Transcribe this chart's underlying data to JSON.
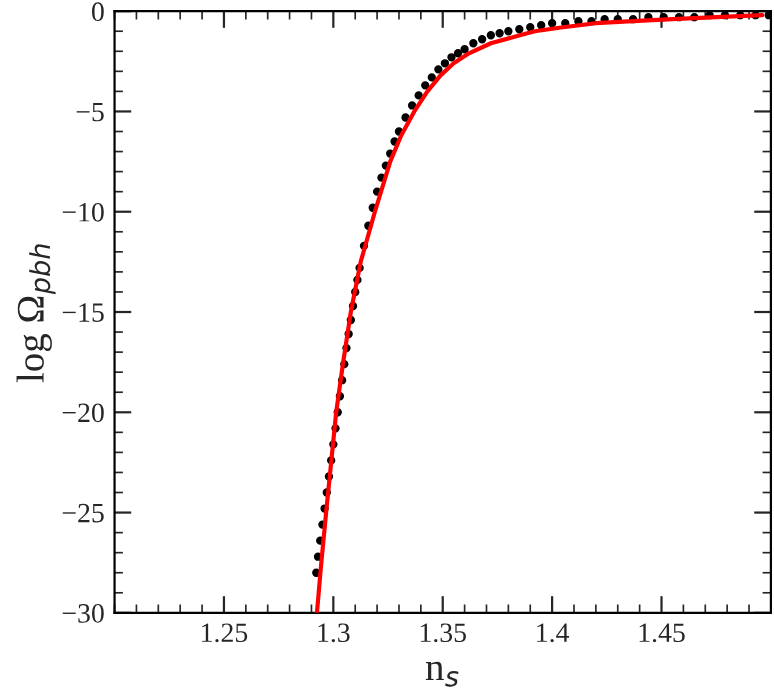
{
  "chart_data": {
    "type": "scatter",
    "xlabel": "n$_{s}$",
    "ylabel": "log Ω$_{pbh}$",
    "xlim": [
      1.2,
      1.5
    ],
    "xticks": [
      1.25,
      1.3,
      1.35,
      1.4,
      1.45
    ],
    "ylim": [
      -30,
      0
    ],
    "yticks": [
      -30,
      -25,
      -20,
      -15,
      -10,
      -5,
      0
    ],
    "grid": false,
    "legend": false,
    "series": [
      {
        "marker": "circle",
        "color": "#000000",
        "x": [
          1.2922,
          1.293,
          1.294,
          1.295,
          1.296,
          1.297,
          1.298,
          1.299,
          1.3,
          1.301,
          1.302,
          1.303,
          1.304,
          1.305,
          1.306,
          1.307,
          1.308,
          1.309,
          1.31,
          1.311,
          1.312,
          1.314,
          1.316,
          1.318,
          1.32,
          1.322,
          1.324,
          1.326,
          1.328,
          1.33,
          1.333,
          1.336,
          1.339,
          1.342,
          1.345,
          1.348,
          1.351,
          1.354,
          1.357,
          1.36,
          1.364,
          1.368,
          1.372,
          1.376,
          1.38,
          1.385,
          1.39,
          1.395,
          1.4,
          1.406,
          1.412,
          1.418,
          1.424,
          1.43,
          1.437,
          1.444,
          1.451,
          1.458,
          1.465,
          1.472,
          1.479,
          1.486,
          1.493,
          1.499
        ],
        "values": [
          -28,
          -27.2,
          -26.4,
          -25.6,
          -24.8,
          -24,
          -23.2,
          -22.4,
          -21.6,
          -20.8,
          -20,
          -19.2,
          -18.4,
          -17.6,
          -16.8,
          -16.1,
          -15.4,
          -14.7,
          -14,
          -13.4,
          -12.8,
          -11.7,
          -10.7,
          -9.8,
          -9,
          -8.3,
          -7.7,
          -7.1,
          -6.5,
          -6,
          -5.3,
          -4.7,
          -4.2,
          -3.7,
          -3.3,
          -2.9,
          -2.6,
          -2.3,
          -2.1,
          -1.9,
          -1.6,
          -1.4,
          -1.2,
          -1.1,
          -1,
          -0.9,
          -0.8,
          -0.7,
          -0.6,
          -0.6,
          -0.5,
          -0.5,
          -0.4,
          -0.4,
          -0.4,
          -0.3,
          -0.3,
          -0.3,
          -0.3,
          -0.2,
          -0.2,
          -0.2,
          -0.2,
          -0.2
        ]
      },
      {
        "type": "line",
        "marker": "none",
        "line_style": "solid",
        "color": "#ff0000",
        "x": [
          1.2925,
          1.2945,
          1.2967,
          1.299,
          1.3013,
          1.3045,
          1.308,
          1.3125,
          1.319,
          1.326,
          1.331,
          1.337,
          1.343,
          1.349,
          1.355,
          1.362,
          1.372,
          1.382,
          1.392,
          1.405,
          1.42,
          1.437,
          1.455,
          1.475,
          1.496
        ],
        "values": [
          -30,
          -27.5,
          -25,
          -22.5,
          -20,
          -17.5,
          -15,
          -12.5,
          -10,
          -7.5,
          -6.2,
          -5,
          -4,
          -3.2,
          -2.6,
          -2.1,
          -1.6,
          -1.3,
          -1,
          -0.8,
          -0.6,
          -0.5,
          -0.4,
          -0.3,
          -0.2
        ]
      }
    ]
  }
}
